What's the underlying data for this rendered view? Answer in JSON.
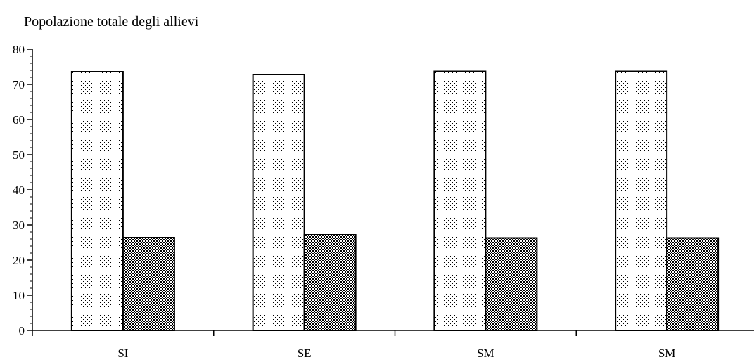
{
  "chart_data": {
    "type": "bar",
    "title": "Popolazione totale degli allievi",
    "xlabel": "",
    "ylabel": "",
    "categories": [
      "SI",
      "SE",
      "SM",
      "SM"
    ],
    "series": [
      {
        "values": [
          73.6,
          72.8,
          73.7,
          73.7
        ],
        "pattern": "fine-dots"
      },
      {
        "values": [
          26.4,
          27.2,
          26.3,
          26.3
        ],
        "pattern": "checkerboard"
      }
    ],
    "ylim": [
      0,
      80
    ],
    "yticks": [
      "0",
      "10",
      "20",
      "30",
      "40",
      "50",
      "60",
      "70",
      "80"
    ],
    "grid": false,
    "legend": "none",
    "colors": {
      "axis": "#000000",
      "bar_outline": "#000000",
      "background": "#ffffff"
    }
  }
}
